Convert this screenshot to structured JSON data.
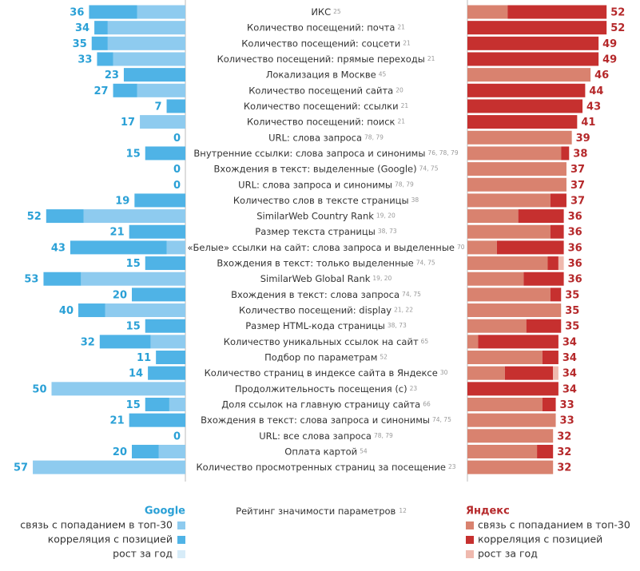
{
  "chart_data": {
    "type": "butterfly",
    "categories": [
      "ИКС",
      "Количество посещений: почта",
      "Количество посещений: соцсети",
      "Количество посещений: прямые переходы",
      "Локализация в Москве",
      "Количество посещений сайта",
      "Количество посещений: ссылки",
      "Количество посещений: поиск",
      "URL: слова запроса",
      "Внутренние ссылки: слова запроса и синонимы",
      "Вхождения в текст: выделенные (Google)",
      "URL: слова запроса и синонимы",
      "Количество слов в тексте страницы",
      "SimilarWeb Country Rank",
      "Размер текста страницы",
      "«Белые» ссылки на сайт: слова запроса и выделенные",
      "Вхождения в текст: только выделенные",
      "SimilarWeb Global Rank",
      "Вхождения в текст: слова запроса",
      "Количество посещений: display",
      "Размер HTML-кода страницы",
      "Количество уникальных ссылок на сайт",
      "Подбор по параметрам",
      "Количество страниц в индексе сайта в Яндексе",
      "Продолжительность посещения (с)",
      "Доля ссылок на главную страницу сайта",
      "Вхождения в текст: слова запроса и синонимы",
      "URL: все слова запроса",
      "Оплата картой",
      "Количество просмотренных страниц за посещение"
    ],
    "refs": [
      "25",
      "21",
      "21",
      "21",
      "45",
      "20",
      "21",
      "21",
      "78, 79",
      "76, 78, 79",
      "74, 75",
      "78, 79",
      "38",
      "19, 20",
      "38, 73",
      "70",
      "74, 75",
      "19, 20",
      "74, 75",
      "21, 22",
      "38, 73",
      "65",
      "52",
      "30",
      "23",
      "66",
      "74, 75",
      "78, 79",
      "54",
      "23"
    ],
    "left": {
      "title": "Google",
      "totals": [
        36,
        34,
        35,
        33,
        23,
        27,
        7,
        17,
        0,
        15,
        0,
        0,
        19,
        52,
        21,
        43,
        15,
        53,
        20,
        40,
        15,
        32,
        11,
        14,
        50,
        15,
        21,
        0,
        20,
        57
      ],
      "series": [
        {
          "name": "связь с попаданием в топ-30",
          "color": "#8ecbef",
          "values": [
            18,
            29,
            29,
            27,
            0,
            18,
            0,
            17,
            0,
            0,
            0,
            0,
            0,
            38,
            0,
            7,
            0,
            39,
            0,
            30,
            0,
            13,
            0,
            0,
            50,
            6,
            0,
            0,
            10,
            57
          ]
        },
        {
          "name": "корреляция с позицией",
          "color": "#4fb3e6",
          "values": [
            18,
            5,
            6,
            6,
            23,
            9,
            7,
            0,
            0,
            15,
            0,
            0,
            19,
            14,
            21,
            36,
            15,
            14,
            20,
            10,
            15,
            19,
            11,
            14,
            0,
            9,
            21,
            0,
            10,
            0
          ]
        },
        {
          "name": "рост за год",
          "color": "#d7ecf8",
          "values": [
            0,
            0,
            0,
            0,
            0,
            0,
            0,
            0,
            0,
            0,
            0,
            0,
            0,
            0,
            0,
            0,
            0,
            0,
            0,
            0,
            0,
            0,
            0,
            0,
            0,
            0,
            0,
            0,
            0,
            0
          ]
        }
      ]
    },
    "right": {
      "title": "Яндекс",
      "totals": [
        52,
        52,
        49,
        49,
        46,
        44,
        43,
        41,
        39,
        38,
        37,
        37,
        37,
        36,
        36,
        36,
        36,
        36,
        35,
        35,
        35,
        34,
        34,
        34,
        34,
        33,
        33,
        32,
        32,
        32
      ],
      "series": [
        {
          "name": "связь с попаданием в топ-30",
          "color": "#d9826f",
          "values": [
            15,
            0,
            0,
            0,
            46,
            0,
            0,
            0,
            39,
            35,
            37,
            37,
            31,
            19,
            31,
            11,
            30,
            21,
            31,
            35,
            22,
            4,
            28,
            14,
            0,
            28,
            33,
            32,
            26,
            32
          ]
        },
        {
          "name": "корреляция с позицией",
          "color": "#c6302f",
          "values": [
            37,
            52,
            49,
            49,
            0,
            44,
            43,
            41,
            0,
            3,
            0,
            0,
            6,
            17,
            5,
            25,
            4,
            15,
            4,
            0,
            13,
            30,
            6,
            18,
            34,
            5,
            0,
            0,
            6,
            0
          ]
        },
        {
          "name": "рост за год",
          "color": "#efb9ae",
          "values": [
            0,
            0,
            0,
            0,
            0,
            0,
            0,
            0,
            0,
            0,
            0,
            0,
            0,
            0,
            0,
            0,
            2,
            0,
            0,
            0,
            0,
            0,
            0,
            2,
            0,
            0,
            0,
            0,
            0,
            0
          ]
        }
      ]
    },
    "footer": {
      "label": "Рейтинг значимости параметров",
      "ref": "12"
    }
  }
}
